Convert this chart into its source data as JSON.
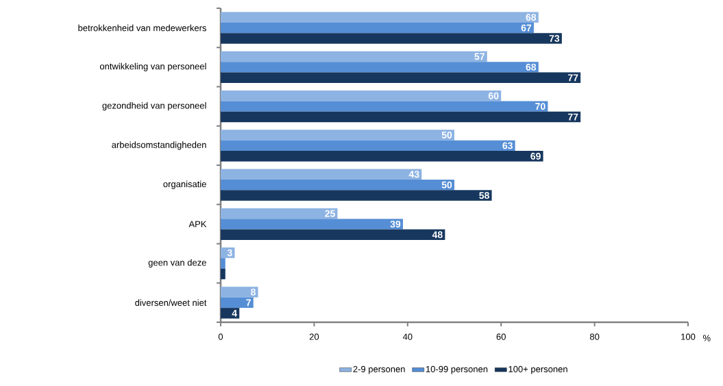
{
  "chart_data": {
    "type": "bar",
    "orientation": "horizontal",
    "xlabel": "%",
    "categories": [
      "betrokkenheid van medewerkers",
      "ontwikkeling van personeel",
      "gezondheid van personeel",
      "arbeidsomstandigheden",
      "organisatie",
      "APK",
      "geen van deze",
      "diversen/weet niet"
    ],
    "series": [
      {
        "name": "2-9 personen",
        "color": "#8db3e2",
        "values": [
          68,
          57,
          60,
          50,
          43,
          25,
          3,
          8
        ],
        "value_labels": [
          "68",
          "57",
          "60",
          "50",
          "43",
          "25",
          "3",
          "8"
        ]
      },
      {
        "name": "10-99 personen",
        "color": "#558ed5",
        "values": [
          67,
          68,
          70,
          63,
          50,
          39,
          1,
          7
        ],
        "value_labels": [
          "67",
          "68",
          "70",
          "63",
          "50",
          "39",
          null,
          "7"
        ]
      },
      {
        "name": "100+ personen",
        "color": "#17375e",
        "values": [
          73,
          77,
          77,
          69,
          58,
          48,
          1,
          4
        ],
        "value_labels": [
          "73",
          "77",
          "77",
          "69",
          "58",
          "48",
          null,
          "4"
        ]
      }
    ],
    "xlim": [
      0,
      100
    ],
    "xticks": [
      0,
      20,
      40,
      60,
      80,
      100
    ],
    "grid": false,
    "legend": "bottom"
  }
}
